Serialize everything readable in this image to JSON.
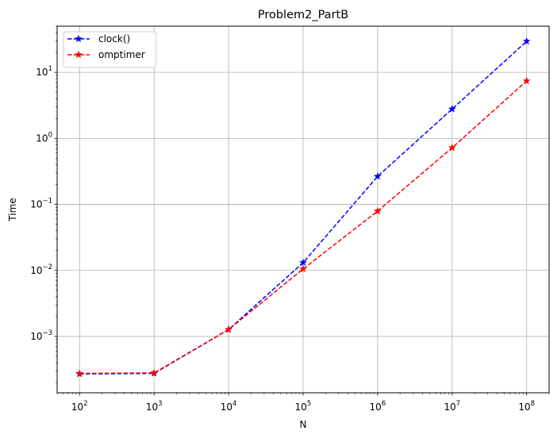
{
  "chart_data": {
    "type": "line",
    "title": "Problem2_PartB",
    "xlabel": "N",
    "ylabel": "Time",
    "xscale": "log",
    "yscale": "log",
    "xlim": [
      50,
      200000000
    ],
    "ylim": [
      0.00014,
      50
    ],
    "grid": true,
    "legend_position": "top-left",
    "x": [
      100,
      1000,
      10000,
      100000,
      1000000,
      10000000,
      100000000
    ],
    "x_tick_labels": [
      {
        "base": "10",
        "exp": "2"
      },
      {
        "base": "10",
        "exp": "3"
      },
      {
        "base": "10",
        "exp": "4"
      },
      {
        "base": "10",
        "exp": "5"
      },
      {
        "base": "10",
        "exp": "6"
      },
      {
        "base": "10",
        "exp": "7"
      },
      {
        "base": "10",
        "exp": "8"
      }
    ],
    "y_ticks": [
      0.001,
      0.01,
      0.1,
      1,
      10
    ],
    "y_tick_labels": [
      {
        "base": "10",
        "exp": "−3"
      },
      {
        "base": "10",
        "exp": "−2"
      },
      {
        "base": "10",
        "exp": "−1"
      },
      {
        "base": "10",
        "exp": "0"
      },
      {
        "base": "10",
        "exp": "1"
      }
    ],
    "series": [
      {
        "name": "clock()",
        "color": "#0000ff",
        "linestyle": "dashed",
        "marker": "star",
        "values": [
          0.00027,
          0.000275,
          0.00127,
          0.0131,
          0.265,
          2.78,
          29.5
        ]
      },
      {
        "name": "omptimer",
        "color": "#ff0000",
        "linestyle": "dashed",
        "marker": "star",
        "values": [
          0.000275,
          0.00028,
          0.00127,
          0.0105,
          0.079,
          0.72,
          7.4
        ]
      }
    ]
  }
}
